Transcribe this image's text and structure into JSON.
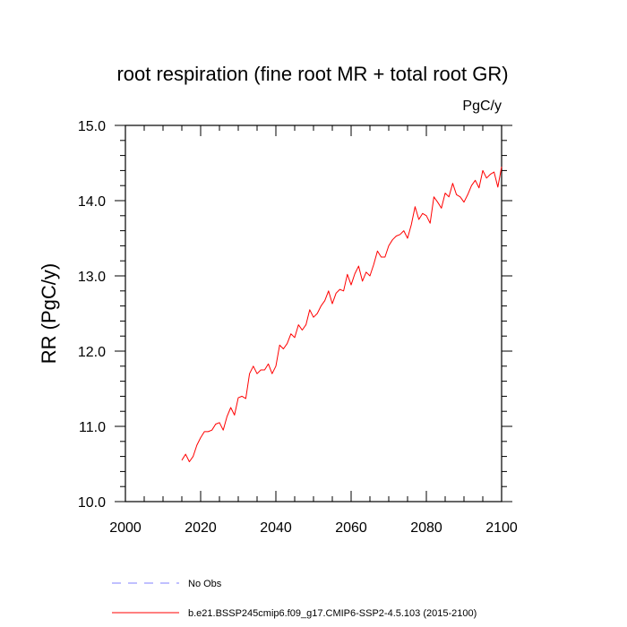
{
  "chart_data": {
    "type": "line",
    "title": "root respiration (fine root MR + total root GR)",
    "units": "PgC/y",
    "xlabel": "",
    "ylabel": "RR  (PgC/y)",
    "xlim": [
      2000,
      2100
    ],
    "ylim": [
      10.0,
      15.0
    ],
    "xticks": [
      2000,
      2020,
      2040,
      2060,
      2080,
      2100
    ],
    "yticks": [
      10.0,
      11.0,
      12.0,
      13.0,
      14.0,
      15.0
    ],
    "xtick_labels": [
      "2000",
      "2020",
      "2040",
      "2060",
      "2080",
      "2100"
    ],
    "ytick_labels": [
      "10.0",
      "11.0",
      "12.0",
      "13.0",
      "14.0",
      "15.0"
    ],
    "grid": false,
    "legend_position": "bottom-left, below plot",
    "series": [
      {
        "name": "b.e21.BSSP245cmip6.f09_g17.CMIP6-SSP2-4.5.103 (2015-2100)",
        "color": "#ff0000",
        "style": "solid",
        "x": [
          2015,
          2016,
          2017,
          2018,
          2019,
          2020,
          2021,
          2022,
          2023,
          2024,
          2025,
          2026,
          2027,
          2028,
          2029,
          2030,
          2031,
          2032,
          2033,
          2034,
          2035,
          2036,
          2037,
          2038,
          2039,
          2040,
          2041,
          2042,
          2043,
          2044,
          2045,
          2046,
          2047,
          2048,
          2049,
          2050,
          2051,
          2052,
          2053,
          2054,
          2055,
          2056,
          2057,
          2058,
          2059,
          2060,
          2061,
          2062,
          2063,
          2064,
          2065,
          2066,
          2067,
          2068,
          2069,
          2070,
          2071,
          2072,
          2073,
          2074,
          2075,
          2076,
          2077,
          2078,
          2079,
          2080,
          2081,
          2082,
          2083,
          2084,
          2085,
          2086,
          2087,
          2088,
          2089,
          2090,
          2091,
          2092,
          2093,
          2094,
          2095,
          2096,
          2097,
          2098,
          2099,
          2100
        ],
        "values": [
          10.55,
          10.63,
          10.53,
          10.6,
          10.75,
          10.85,
          10.93,
          10.93,
          10.95,
          11.03,
          11.05,
          10.95,
          11.13,
          11.25,
          11.15,
          11.38,
          11.4,
          11.37,
          11.7,
          11.8,
          11.7,
          11.75,
          11.75,
          11.83,
          11.7,
          11.8,
          12.08,
          12.03,
          12.1,
          12.23,
          12.18,
          12.35,
          12.28,
          12.35,
          12.55,
          12.45,
          12.5,
          12.6,
          12.67,
          12.8,
          12.63,
          12.77,
          12.82,
          12.8,
          13.02,
          12.88,
          13.03,
          13.13,
          12.93,
          13.05,
          13.0,
          13.15,
          13.33,
          13.25,
          13.25,
          13.4,
          13.48,
          13.53,
          13.55,
          13.6,
          13.5,
          13.68,
          13.92,
          13.75,
          13.83,
          13.8,
          13.7,
          14.05,
          13.98,
          13.9,
          14.1,
          14.05,
          14.23,
          14.08,
          14.05,
          13.98,
          14.08,
          14.2,
          14.27,
          14.17,
          14.4,
          14.3,
          14.35,
          14.38,
          14.18,
          14.45
        ]
      }
    ],
    "legend_entries": [
      {
        "label": "No Obs",
        "color": "#8080ff",
        "style": "dashed"
      },
      {
        "label": "b.e21.BSSP245cmip6.f09_g17.CMIP6-SSP2-4.5.103 (2015-2100)",
        "color": "#ff0000",
        "style": "solid"
      }
    ]
  }
}
